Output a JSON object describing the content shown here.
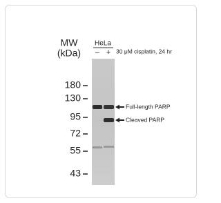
{
  "header": {
    "mw": "MW",
    "unit": "(kDa)",
    "cell_line": "HeLa",
    "lanes": [
      "–",
      "+"
    ],
    "treatment": "30 μM cisplatin, 24 hr"
  },
  "markers": [
    "180",
    "130",
    "95",
    "72",
    "55",
    "43"
  ],
  "bands": [
    "Full-length PARP",
    "Cleaved PARP"
  ]
}
